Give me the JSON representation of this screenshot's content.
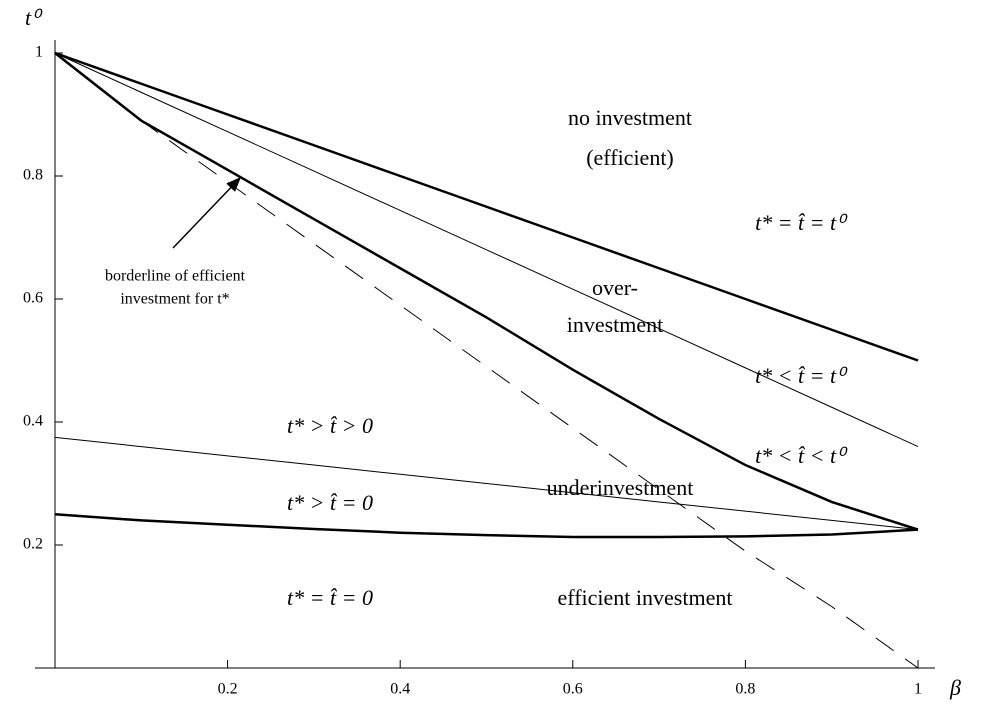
{
  "chart_data": {
    "type": "line",
    "x_label": "β",
    "y_label": "t⁰",
    "x": [
      0,
      0.1,
      0.2,
      0.3,
      0.4,
      0.5,
      0.6,
      0.7,
      0.8,
      0.9,
      1
    ],
    "series": [
      {
        "color": "#000000",
        "width": 2.5,
        "dashed": false,
        "values": [
          1,
          0.95,
          0.9,
          0.85,
          0.8,
          0.75,
          0.7,
          0.65,
          0.6,
          0.55,
          0.5
        ]
      },
      {
        "color": "#000000",
        "width": 1,
        "dashed": false,
        "values": [
          1,
          0.936,
          0.872,
          0.808,
          0.744,
          0.68,
          0.616,
          0.552,
          0.488,
          0.424,
          0.36
        ]
      },
      {
        "color": "#000000",
        "width": 2.5,
        "dashed": false,
        "values": [
          1,
          0.89,
          0.81,
          0.73,
          0.65,
          0.57,
          0.485,
          0.405,
          0.33,
          0.27,
          0.225
        ]
      },
      {
        "color": "#000000",
        "width": 1,
        "dashed": true,
        "values": [
          1,
          0.89,
          0.79,
          0.69,
          0.59,
          0.49,
          0.39,
          0.29,
          0.19,
          0.1,
          0
        ]
      },
      {
        "color": "#000000",
        "width": 1,
        "dashed": false,
        "values": [
          0.375,
          0.36,
          0.345,
          0.33,
          0.315,
          0.3,
          0.285,
          0.27,
          0.255,
          0.24,
          0.225
        ]
      },
      {
        "color": "#000000",
        "width": 2.5,
        "dashed": false,
        "values": [
          0.25,
          0.24,
          0.233,
          0.226,
          0.22,
          0.216,
          0.213,
          0.213,
          0.214,
          0.217,
          0.225
        ]
      }
    ],
    "xlim": [
      0,
      1
    ],
    "ylim": [
      0,
      1
    ],
    "xticks": [
      0.2,
      0.4,
      0.6,
      0.8,
      1
    ],
    "yticks": [
      0.2,
      0.4,
      0.6,
      0.8,
      1
    ],
    "annotations": [
      "no investment",
      "(efficient)",
      "t* = t̂ = t⁰",
      "over-",
      "investment",
      "t* < t̂ = t⁰",
      "t* < t̂ < t⁰",
      "t* > t̂ > 0",
      "underinvestment",
      "t* > t̂ = 0",
      "t* = t̂ = 0",
      "efficient investment",
      "borderline of efficient",
      "investment for t*"
    ]
  }
}
